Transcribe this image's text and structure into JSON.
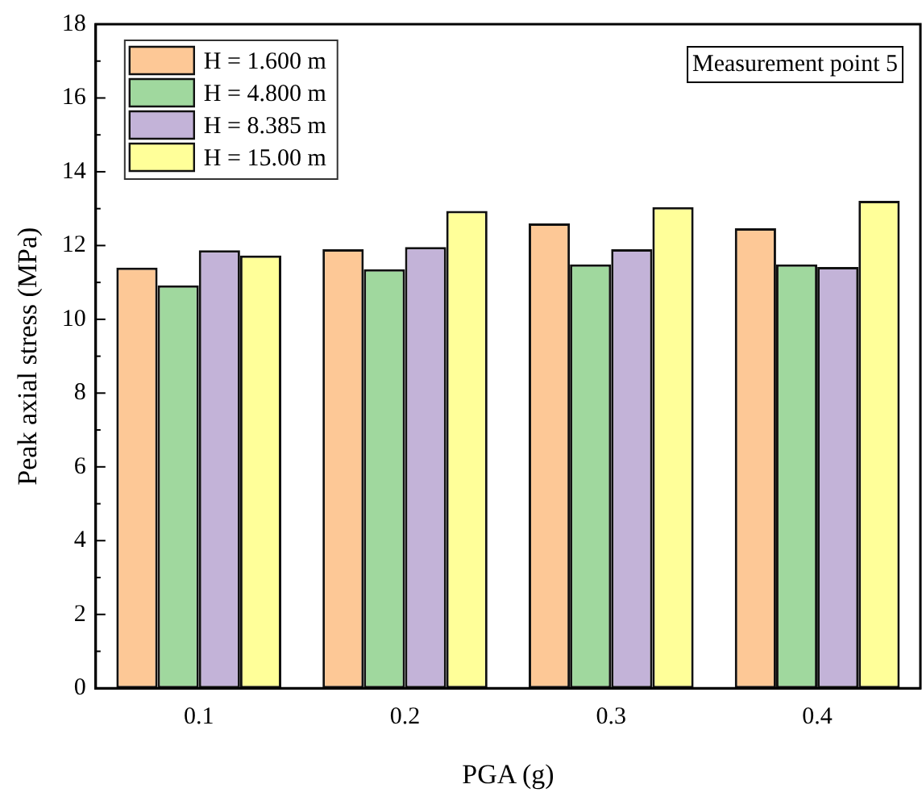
{
  "chart_data": {
    "type": "bar",
    "xlabel": "PGA (g)",
    "ylabel": "Peak axial stress (MPa)",
    "categories": [
      "0.1",
      "0.2",
      "0.3",
      "0.4"
    ],
    "series": [
      {
        "name": "H = 1.600 m",
        "color": "#fdc896",
        "values": [
          11.4,
          11.9,
          12.6,
          12.47
        ]
      },
      {
        "name": "H = 4.800 m",
        "color": "#a0d89e",
        "values": [
          10.92,
          11.36,
          11.49,
          11.49
        ]
      },
      {
        "name": "H = 8.385 m",
        "color": "#c3b3d8",
        "values": [
          11.87,
          11.96,
          11.9,
          11.42
        ]
      },
      {
        "name": "H = 15.00 m",
        "color": "#ffff99",
        "values": [
          11.73,
          12.94,
          13.04,
          13.21
        ]
      }
    ],
    "ylim": [
      0,
      18
    ],
    "yticks": [
      0,
      2,
      4,
      6,
      8,
      10,
      12,
      14,
      16,
      18
    ],
    "grid": false,
    "legend": "top left",
    "annotations": [
      "Measurement point 5"
    ]
  }
}
